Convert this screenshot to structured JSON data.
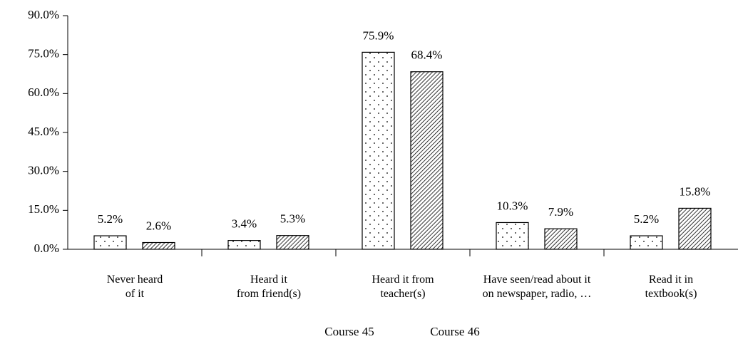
{
  "chart_data": {
    "type": "bar",
    "categories": [
      "Never heard\nof it",
      "Heard it\nfrom friend(s)",
      "Heard it from\nteacher(s)",
      "Have seen/read about it\non newspaper, radio, …",
      "Read it in\ntextbook(s)"
    ],
    "series": [
      {
        "name": "Course 45",
        "color": "#000000",
        "pattern": "dots",
        "values": [
          5.2,
          3.4,
          75.9,
          10.3,
          5.2
        ],
        "value_labels": [
          "5.2%",
          "3.4%",
          "75.9%",
          "10.3%",
          "5.2%"
        ]
      },
      {
        "name": "Course 46",
        "color": "#000000",
        "pattern": "hatch",
        "values": [
          2.6,
          5.3,
          68.4,
          7.9,
          15.8
        ],
        "value_labels": [
          "2.6%",
          "5.3%",
          "68.4%",
          "7.9%",
          "15.8%"
        ]
      }
    ],
    "ylim": [
      0,
      90
    ],
    "yticks": [
      {
        "value": 0,
        "label": "0.0%"
      },
      {
        "value": 15,
        "label": "15.0%"
      },
      {
        "value": 30,
        "label": "30.0%"
      },
      {
        "value": 45,
        "label": "45.0%"
      },
      {
        "value": 60,
        "label": "60.0%"
      },
      {
        "value": 75,
        "label": "75.0%"
      },
      {
        "value": 90,
        "label": "90.0%"
      }
    ],
    "grid": false,
    "legend": "bottom"
  }
}
